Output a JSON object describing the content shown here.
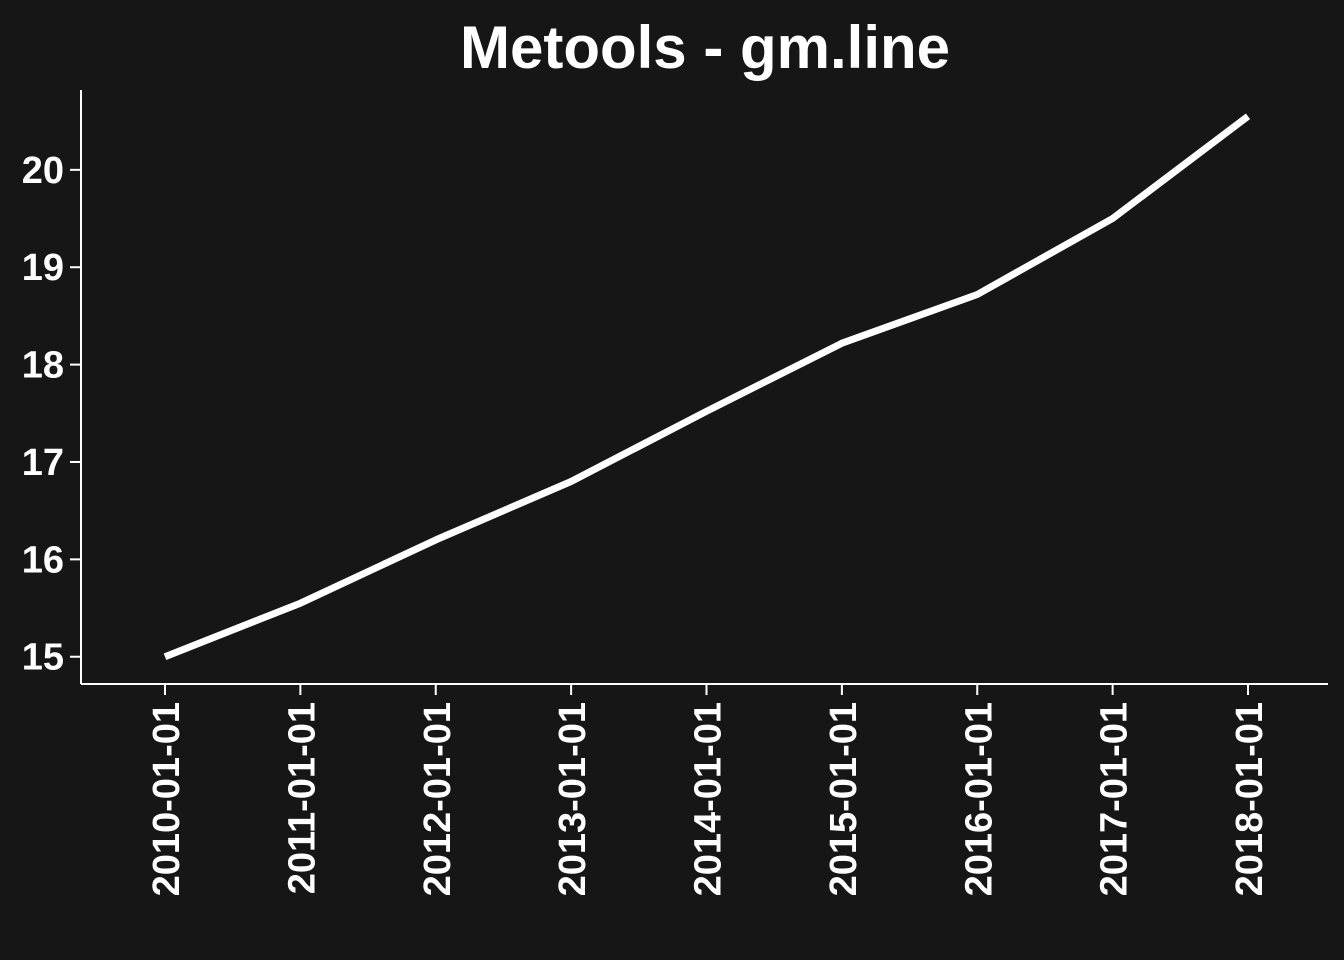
{
  "colors": {
    "background": "#161616",
    "foreground": "#ffffff",
    "line": "#ffffff"
  },
  "chart_data": {
    "type": "line",
    "title": "Metools - gm.line",
    "xlabel": "",
    "ylabel": "",
    "x": [
      "2010-01-01",
      "2011-01-01",
      "2012-01-01",
      "2013-01-01",
      "2014-01-01",
      "2015-01-01",
      "2016-01-01",
      "2017-01-01",
      "2018-01-01"
    ],
    "series": [
      {
        "values": [
          15.0,
          15.55,
          16.2,
          16.8,
          17.52,
          18.22,
          18.72,
          19.5,
          20.55
        ]
      }
    ],
    "yticks": [
      15,
      16,
      17,
      18,
      19,
      20
    ],
    "ylim": [
      14.72,
      20.82
    ],
    "grid": false,
    "legend": "none"
  }
}
